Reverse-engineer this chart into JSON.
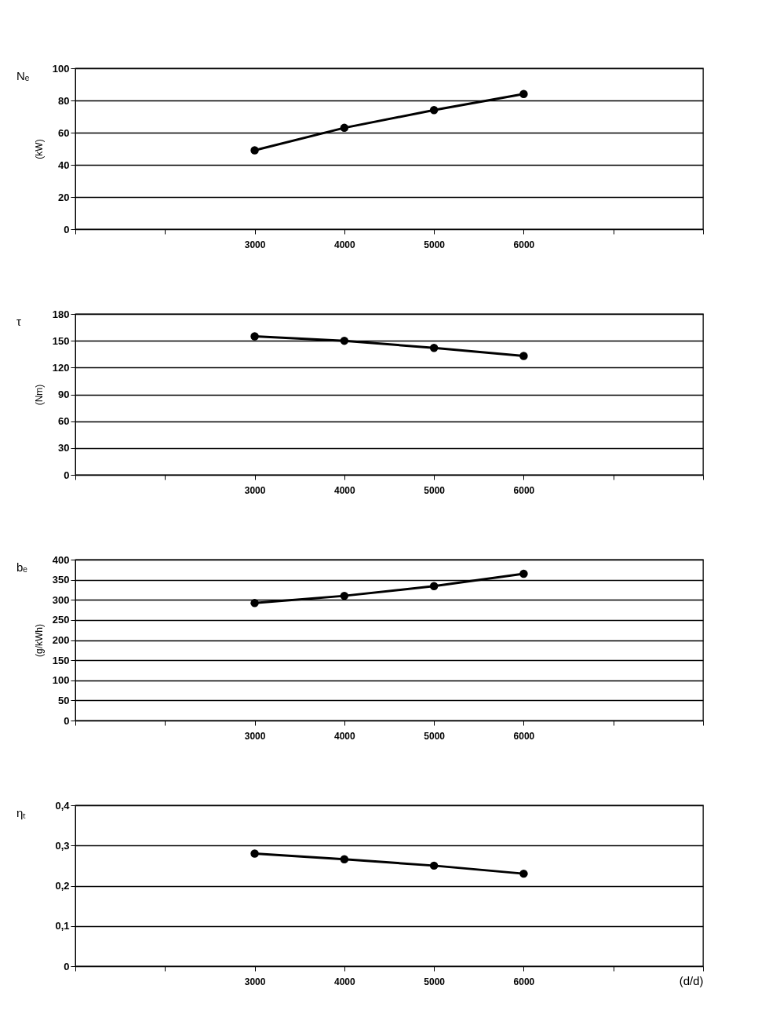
{
  "chart_data": [
    {
      "type": "line",
      "title": "Nₑ",
      "ylabel": "(kW)",
      "x": [
        3000,
        4000,
        5000,
        6000
      ],
      "series": [
        {
          "color": "#000000",
          "values": [
            49,
            63,
            74,
            84
          ]
        }
      ],
      "xlim": [
        1000,
        8000
      ],
      "xticks": [
        {
          "value": 1000,
          "label": null
        },
        {
          "value": 2000,
          "label": null
        },
        3000,
        4000,
        5000,
        6000,
        {
          "value": 7000,
          "label": null
        },
        {
          "value": 8000,
          "label": null
        }
      ],
      "ylim": [
        0,
        100
      ],
      "yticks": [
        0,
        20,
        40,
        60,
        80,
        100
      ],
      "grid": "y",
      "marker": "circle",
      "line_style": "solid"
    },
    {
      "type": "line",
      "title": "τ",
      "ylabel": "(Nm)",
      "x": [
        3000,
        4000,
        5000,
        6000
      ],
      "series": [
        {
          "color": "#000000",
          "values": [
            155,
            150,
            142,
            133
          ]
        }
      ],
      "xlim": [
        1000,
        8000
      ],
      "xticks": [
        {
          "value": 1000,
          "label": null
        },
        {
          "value": 2000,
          "label": null
        },
        3000,
        4000,
        5000,
        6000,
        {
          "value": 7000,
          "label": null
        },
        {
          "value": 8000,
          "label": null
        }
      ],
      "ylim": [
        0,
        180
      ],
      "yticks": [
        0,
        30,
        60,
        90,
        120,
        150,
        180
      ],
      "grid": "y",
      "marker": "circle",
      "line_style": "solid"
    },
    {
      "type": "line",
      "title": "bₑ",
      "ylabel": "(g/kWh)",
      "x": [
        3000,
        4000,
        5000,
        6000
      ],
      "series": [
        {
          "color": "#000000",
          "values": [
            292,
            310,
            334,
            365
          ]
        }
      ],
      "xlim": [
        1000,
        8000
      ],
      "xticks": [
        {
          "value": 1000,
          "label": null
        },
        {
          "value": 2000,
          "label": null
        },
        3000,
        4000,
        5000,
        6000,
        {
          "value": 7000,
          "label": null
        },
        {
          "value": 8000,
          "label": null
        }
      ],
      "ylim": [
        0,
        400
      ],
      "yticks": [
        0,
        50,
        100,
        150,
        200,
        250,
        300,
        350,
        400
      ],
      "grid": "y",
      "marker": "circle",
      "line_style": "solid"
    },
    {
      "type": "line",
      "title": "ηₜ",
      "xlabel": "(d/d)",
      "x": [
        3000,
        4000,
        5000,
        6000
      ],
      "series": [
        {
          "color": "#000000",
          "values": [
            0.28,
            0.266,
            0.25,
            0.23
          ]
        }
      ],
      "xlim": [
        1000,
        8000
      ],
      "xticks": [
        {
          "value": 1000,
          "label": null
        },
        {
          "value": 2000,
          "label": null
        },
        3000,
        4000,
        5000,
        6000,
        {
          "value": 7000,
          "label": null
        },
        {
          "value": 8000,
          "label": null
        }
      ],
      "ylim": [
        0,
        0.4
      ],
      "yticks": [
        0,
        {
          "value": 0.1,
          "label": "0,1"
        },
        {
          "value": 0.2,
          "label": "0,2"
        },
        {
          "value": 0.3,
          "label": "0,3"
        },
        {
          "value": 0.4,
          "label": "0,4"
        }
      ],
      "grid": "y",
      "marker": "circle",
      "line_style": "solid"
    }
  ]
}
